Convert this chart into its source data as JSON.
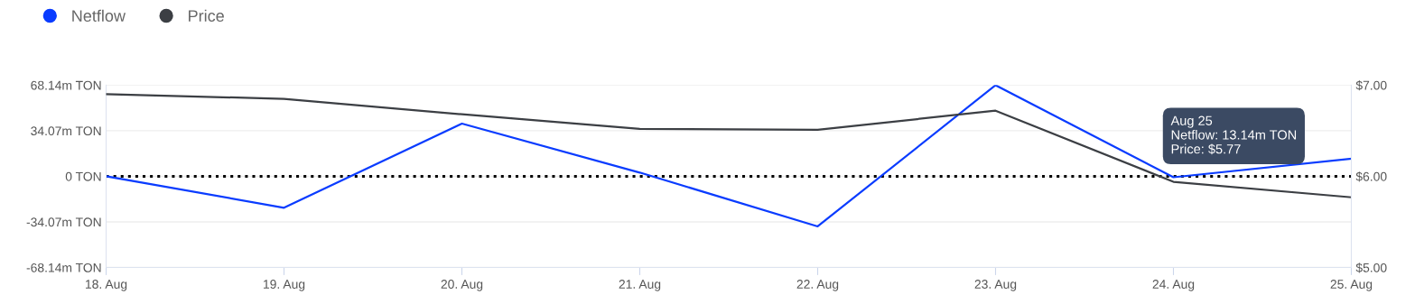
{
  "chart_data": {
    "type": "line",
    "categories": [
      "18. Aug",
      "19. Aug",
      "20. Aug",
      "21. Aug",
      "22. Aug",
      "23. Aug",
      "24. Aug",
      "25. Aug"
    ],
    "series": [
      {
        "name": "Netflow",
        "color": "#0a3cff",
        "values": [
          0,
          -23.5,
          39.4,
          2.8,
          -37.4,
          68.1,
          -0.7,
          13.14
        ]
      },
      {
        "name": "Price",
        "color": "#3c3f44",
        "axis": "y2",
        "values": [
          6.9,
          6.85,
          6.68,
          6.52,
          6.51,
          6.72,
          5.94,
          5.77
        ]
      }
    ],
    "ylim": [
      -68.14,
      68.14
    ],
    "yticks": [
      {
        "value": -68.14,
        "label": "-68.14m TON"
      },
      {
        "value": -34.07,
        "label": "-34.07m TON"
      },
      {
        "value": 0,
        "label": "0 TON"
      },
      {
        "value": 34.07,
        "label": "34.07m TON"
      },
      {
        "value": 68.14,
        "label": "68.14m TON"
      }
    ],
    "y2lim": [
      5.0,
      7.0
    ],
    "y2ticks": [
      {
        "value": 5.0,
        "label": "$5.00"
      },
      {
        "value": 6.0,
        "label": "$6.00"
      },
      {
        "value": 7.0,
        "label": "$7.00"
      }
    ],
    "ref_lines": [
      {
        "axis": "y",
        "value": 0,
        "color": "#000000",
        "line_style": "dotted"
      }
    ],
    "annotations": [
      "Aug 25\nNetflow: 13.14m TON\nPrice: $5.77"
    ],
    "grid": "y",
    "legend": "top left",
    "marker": "none",
    "line_style": "solid"
  }
}
